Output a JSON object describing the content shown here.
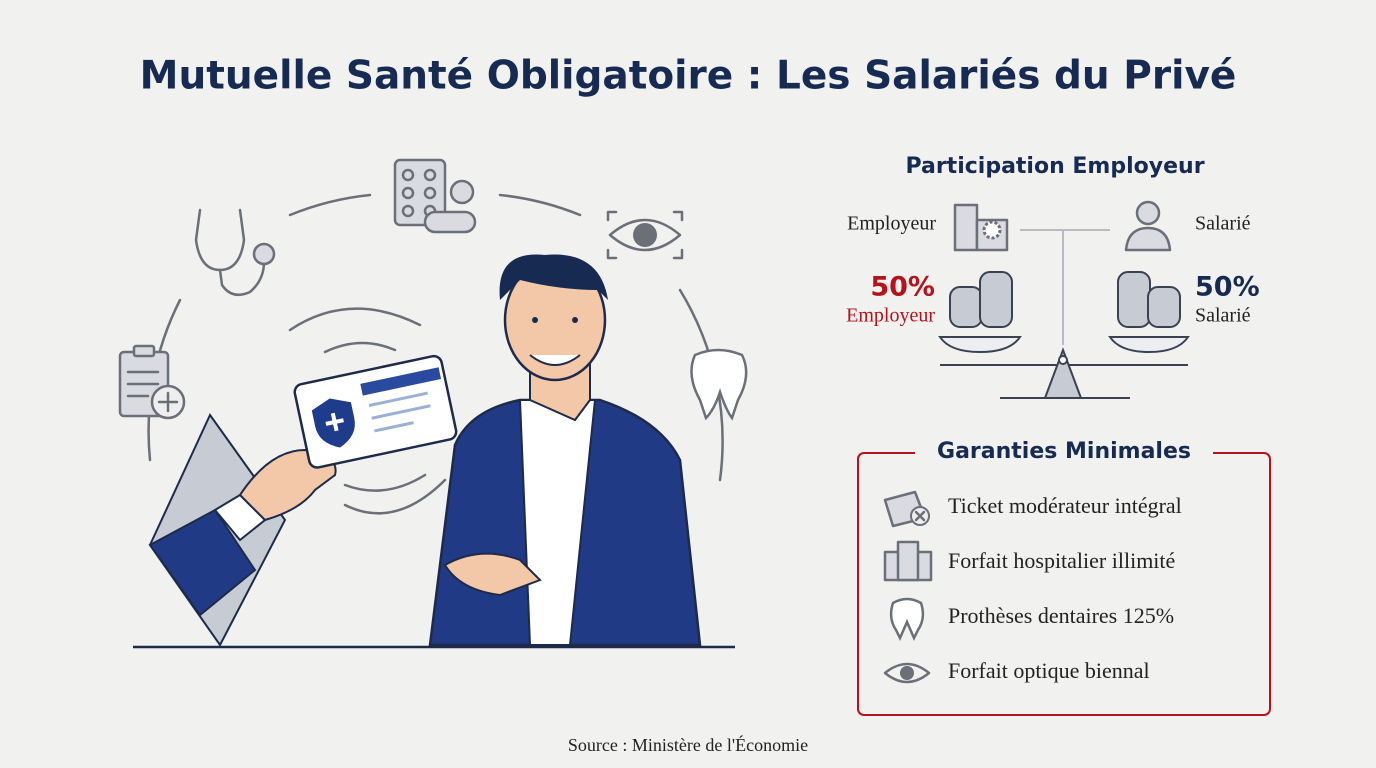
{
  "header": {
    "title": "Mutuelle Santé Obligatoire : Les Salariés du Privé"
  },
  "participation": {
    "title": "Participation Employeur",
    "employer": {
      "label": "Employeur",
      "share": "50%",
      "share_label": "Employeur"
    },
    "employee": {
      "label": "Salarié",
      "share": "50%",
      "share_label": "Salarié"
    }
  },
  "guarantees": {
    "title": "Garanties Minimales",
    "items": [
      "Ticket modérateur intégral",
      "Forfait hospitalier illimité",
      "Prothèses dentaires 125%",
      "Forfait optique biennal"
    ]
  },
  "footer": {
    "source": "Source : Ministère de l'Économie"
  }
}
